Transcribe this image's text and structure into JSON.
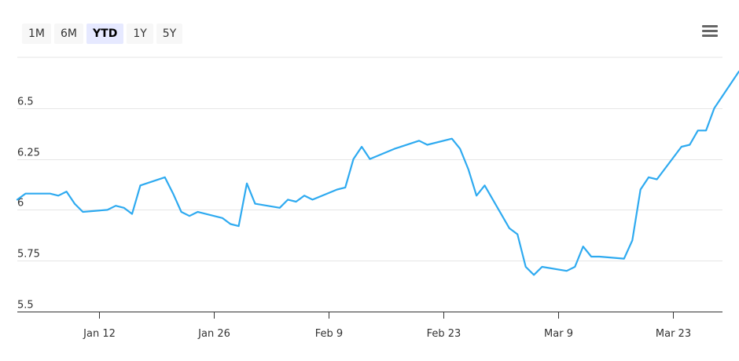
{
  "range_selector": {
    "buttons": [
      {
        "label": "1M"
      },
      {
        "label": "6M"
      },
      {
        "label": "YTD"
      },
      {
        "label": "1Y"
      },
      {
        "label": "5Y"
      }
    ],
    "selected": "YTD"
  },
  "menu": {
    "icon": "hamburger-menu-icon"
  },
  "colors": {
    "line": "#2eaaf0",
    "grid": "#e6e6e6",
    "axis": "#333333",
    "active_bg": "#e6e9ff"
  },
  "chart_data": {
    "type": "line",
    "title": "",
    "xlabel": "",
    "ylabel": "",
    "ylim": [
      5.5,
      6.75
    ],
    "yticks": [
      {
        "value": 5.5,
        "label": "5.5"
      },
      {
        "value": 5.75,
        "label": "5.75"
      },
      {
        "value": 6,
        "label": "6"
      },
      {
        "value": 6.25,
        "label": "6.25"
      },
      {
        "value": 6.5,
        "label": "6.5"
      }
    ],
    "xlim": [
      "2026-01-02",
      "2026-03-29"
    ],
    "xticks": [
      {
        "date": "2026-01-12",
        "label": "Jan 12"
      },
      {
        "date": "2026-01-26",
        "label": "Jan 26"
      },
      {
        "date": "2026-02-09",
        "label": "Feb 9"
      },
      {
        "date": "2026-02-23",
        "label": "Feb 23"
      },
      {
        "date": "2026-03-09",
        "label": "Mar 9"
      },
      {
        "date": "2026-03-23",
        "label": "Mar 23"
      }
    ],
    "grid": true,
    "series": [
      {
        "points": [
          [
            "2026-01-02",
            6.05
          ],
          [
            "2026-01-03",
            6.08
          ],
          [
            "2026-01-06",
            6.08
          ],
          [
            "2026-01-07",
            6.07
          ],
          [
            "2026-01-08",
            6.09
          ],
          [
            "2026-01-09",
            6.03
          ],
          [
            "2026-01-10",
            5.99
          ],
          [
            "2026-01-13",
            6.0
          ],
          [
            "2026-01-14",
            6.02
          ],
          [
            "2026-01-15",
            6.01
          ],
          [
            "2026-01-16",
            5.98
          ],
          [
            "2026-01-17",
            6.12
          ],
          [
            "2026-01-20",
            6.16
          ],
          [
            "2026-01-21",
            6.08
          ],
          [
            "2026-01-22",
            5.99
          ],
          [
            "2026-01-23",
            5.97
          ],
          [
            "2026-01-24",
            5.99
          ],
          [
            "2026-01-27",
            5.96
          ],
          [
            "2026-01-28",
            5.93
          ],
          [
            "2026-01-29",
            5.92
          ],
          [
            "2026-01-30",
            6.13
          ],
          [
            "2026-01-31",
            6.03
          ],
          [
            "2026-02-03",
            6.01
          ],
          [
            "2026-02-04",
            6.05
          ],
          [
            "2026-02-05",
            6.04
          ],
          [
            "2026-02-06",
            6.07
          ],
          [
            "2026-02-07",
            6.05
          ],
          [
            "2026-02-10",
            6.1
          ],
          [
            "2026-02-11",
            6.11
          ],
          [
            "2026-02-12",
            6.25
          ],
          [
            "2026-02-13",
            6.31
          ],
          [
            "2026-02-14",
            6.25
          ],
          [
            "2026-02-17",
            6.3
          ],
          [
            "2026-02-20",
            6.34
          ],
          [
            "2026-02-21",
            6.32
          ],
          [
            "2026-02-24",
            6.35
          ],
          [
            "2026-02-25",
            6.3
          ],
          [
            "2026-02-26",
            6.2
          ],
          [
            "2026-02-27",
            6.07
          ],
          [
            "2026-02-28",
            6.12
          ],
          [
            "2026-03-03",
            5.91
          ],
          [
            "2026-03-04",
            5.88
          ],
          [
            "2026-03-05",
            5.72
          ],
          [
            "2026-03-06",
            5.68
          ],
          [
            "2026-03-07",
            5.72
          ],
          [
            "2026-03-10",
            5.7
          ],
          [
            "2026-03-11",
            5.72
          ],
          [
            "2026-03-12",
            5.82
          ],
          [
            "2026-03-13",
            5.77
          ],
          [
            "2026-03-14",
            5.77
          ],
          [
            "2026-03-17",
            5.76
          ],
          [
            "2026-03-18",
            5.85
          ],
          [
            "2026-03-19",
            6.1
          ],
          [
            "2026-03-20",
            6.16
          ],
          [
            "2026-03-21",
            6.15
          ],
          [
            "2026-03-24",
            6.31
          ],
          [
            "2026-03-25",
            6.32
          ],
          [
            "2026-03-26",
            6.39
          ],
          [
            "2026-03-27",
            6.39
          ],
          [
            "2026-03-28",
            6.5
          ],
          [
            "2026-03-31",
            6.68
          ]
        ]
      }
    ]
  }
}
